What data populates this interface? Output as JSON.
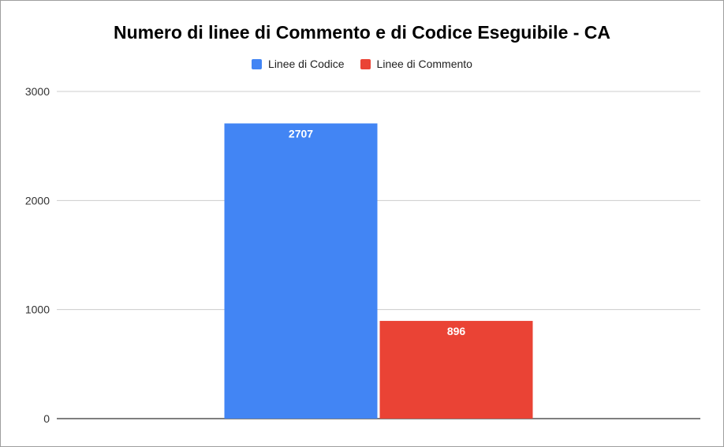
{
  "chart_data": {
    "type": "bar",
    "title": "Numero di linee di Commento e di Codice Eseguibile - CA",
    "xlabel": "",
    "ylabel": "",
    "categories": [
      ""
    ],
    "series": [
      {
        "name": "Linee di Codice",
        "values": [
          2707
        ],
        "color": "#4285f4",
        "data_label": "2707"
      },
      {
        "name": "Linee di Commento",
        "values": [
          896
        ],
        "color": "#ea4335",
        "data_label": "896"
      }
    ],
    "ylim": [
      0,
      3000
    ],
    "yticks": [
      0,
      1000,
      2000,
      3000
    ],
    "ytick_labels": [
      "0",
      "1000",
      "2000",
      "3000"
    ],
    "grid": true,
    "legend_position": "top-center"
  }
}
